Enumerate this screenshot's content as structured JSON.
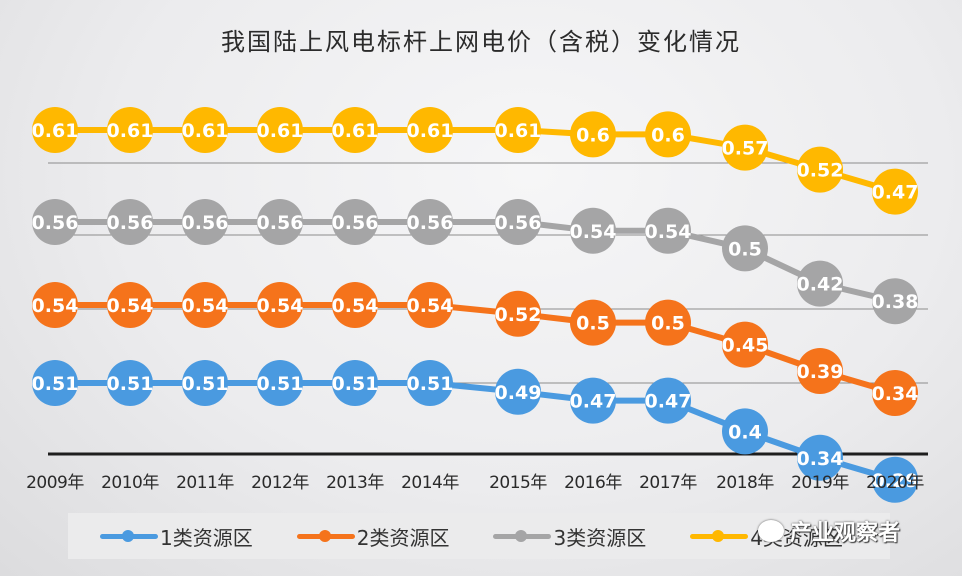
{
  "chart_data": {
    "type": "line",
    "title": "我国陆上风电标杆上网电价（含税）变化情况",
    "xlabel": "",
    "ylabel": "",
    "categories": [
      "2009年",
      "2010年",
      "2011年",
      "2012年",
      "2013年",
      "2014年",
      "2015年",
      "2016年",
      "2017年",
      "2018年",
      "2019年",
      "2020年"
    ],
    "series": [
      {
        "name": "1类资源区",
        "color": "#4a9ae0",
        "values": [
          0.51,
          0.51,
          0.51,
          0.51,
          0.51,
          0.51,
          0.49,
          0.47,
          0.47,
          0.4,
          0.34,
          0.29
        ]
      },
      {
        "name": "2类资源区",
        "color": "#f5731b",
        "values": [
          0.54,
          0.54,
          0.54,
          0.54,
          0.54,
          0.54,
          0.52,
          0.5,
          0.5,
          0.45,
          0.39,
          0.34
        ]
      },
      {
        "name": "3类资源区",
        "color": "#a5a5a6",
        "values": [
          0.56,
          0.56,
          0.56,
          0.56,
          0.56,
          0.56,
          0.56,
          0.54,
          0.54,
          0.5,
          0.42,
          0.38
        ]
      },
      {
        "name": "4类资源区",
        "color": "#ffb800",
        "values": [
          0.61,
          0.61,
          0.61,
          0.61,
          0.61,
          0.61,
          0.61,
          0.6,
          0.6,
          0.57,
          0.52,
          0.47
        ]
      }
    ],
    "data_labels": [
      [
        "0.51",
        "0.51",
        "0.51",
        "0.51",
        "0.51",
        "0.51",
        "0.49",
        "0.47",
        "0.47",
        "0.4",
        "0.34",
        "0.29"
      ],
      [
        "0.54",
        "0.54",
        "0.54",
        "0.54",
        "0.54",
        "0.54",
        "0.52",
        "0.5",
        "0.5",
        "0.45",
        "0.39",
        "0.34"
      ],
      [
        "0.56",
        "0.56",
        "0.56",
        "0.56",
        "0.56",
        "0.56",
        "0.56",
        "0.54",
        "0.54",
        "0.5",
        "0.42",
        "0.38"
      ],
      [
        "0.61",
        "0.61",
        "0.61",
        "0.61",
        "0.61",
        "0.61",
        "0.61",
        "0.6",
        "0.6",
        "0.57",
        "0.52",
        "0.47"
      ]
    ],
    "grid": true,
    "legend_position": "bottom",
    "y_axis_visible": false
  },
  "legend": {
    "items": [
      {
        "label": "1类资源区",
        "color": "#4a9ae0"
      },
      {
        "label": "2类资源区",
        "color": "#f5731b"
      },
      {
        "label": "3类资源区",
        "color": "#a5a5a6"
      },
      {
        "label": "4类资源区",
        "color": "#ffb800"
      }
    ]
  },
  "watermark": {
    "text": "产业观察者"
  }
}
